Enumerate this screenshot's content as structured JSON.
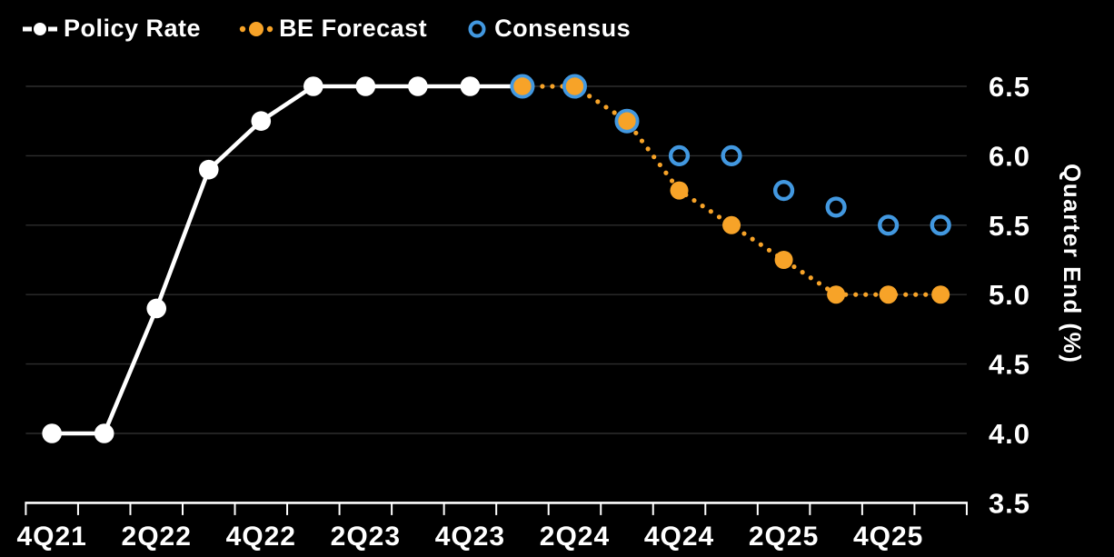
{
  "colors": {
    "background": "#000000",
    "white": "#ffffff",
    "orange": "#f7a328",
    "blue": "#4298e0",
    "grid": "#2d2d2d"
  },
  "legend": [
    {
      "label": "Policy Rate",
      "marker": "dash-dot-dash",
      "color": "#ffffff"
    },
    {
      "label": "BE Forecast",
      "marker": "dotted-dot",
      "color": "#f7a328"
    },
    {
      "label": "Consensus",
      "marker": "open-circle",
      "color": "#4298e0"
    }
  ],
  "chart_data": {
    "type": "line",
    "title": "",
    "ylabel": "Quarter End (%)",
    "xlabel": "",
    "ylim": [
      3.5,
      6.75
    ],
    "yticks": [
      6.5,
      6.0,
      5.5,
      5.0,
      4.5,
      4.0,
      3.5
    ],
    "ytick_labels": [
      "6.5",
      "6.0",
      "5.5",
      "5.0",
      "4.5",
      "4.0",
      "3.5"
    ],
    "grid": "horizontal",
    "legend_position": "top-left",
    "quarters": [
      "4Q21",
      "1Q22",
      "2Q22",
      "3Q22",
      "4Q22",
      "1Q23",
      "2Q23",
      "3Q23",
      "4Q23",
      "1Q24",
      "2Q24",
      "3Q24",
      "4Q24",
      "1Q25",
      "2Q25",
      "3Q25",
      "4Q25",
      "1Q26"
    ],
    "x_tick_labels": [
      "4Q21",
      "2Q22",
      "4Q22",
      "2Q23",
      "4Q23",
      "2Q24",
      "4Q24",
      "2Q25",
      "4Q25"
    ],
    "series": [
      {
        "name": "Policy Rate",
        "color": "#ffffff",
        "line_style": "solid",
        "marker": "filled-circle",
        "values": [
          4.0,
          4.0,
          4.9,
          5.9,
          6.25,
          6.5,
          6.5,
          6.5,
          6.5,
          6.5,
          null,
          null,
          null,
          null,
          null,
          null,
          null,
          null
        ]
      },
      {
        "name": "BE Forecast",
        "color": "#f7a328",
        "line_style": "dotted",
        "marker": "filled-circle",
        "values": [
          null,
          null,
          null,
          null,
          null,
          null,
          null,
          null,
          null,
          6.5,
          6.5,
          6.25,
          5.75,
          5.5,
          5.25,
          5.0,
          5.0,
          5.0
        ]
      },
      {
        "name": "Consensus",
        "color": "#4298e0",
        "line_style": "none",
        "marker": "open-circle",
        "values": [
          null,
          null,
          null,
          null,
          null,
          null,
          null,
          null,
          null,
          6.5,
          6.5,
          6.25,
          6.0,
          6.0,
          5.75,
          5.63,
          5.5,
          5.5
        ]
      }
    ]
  }
}
